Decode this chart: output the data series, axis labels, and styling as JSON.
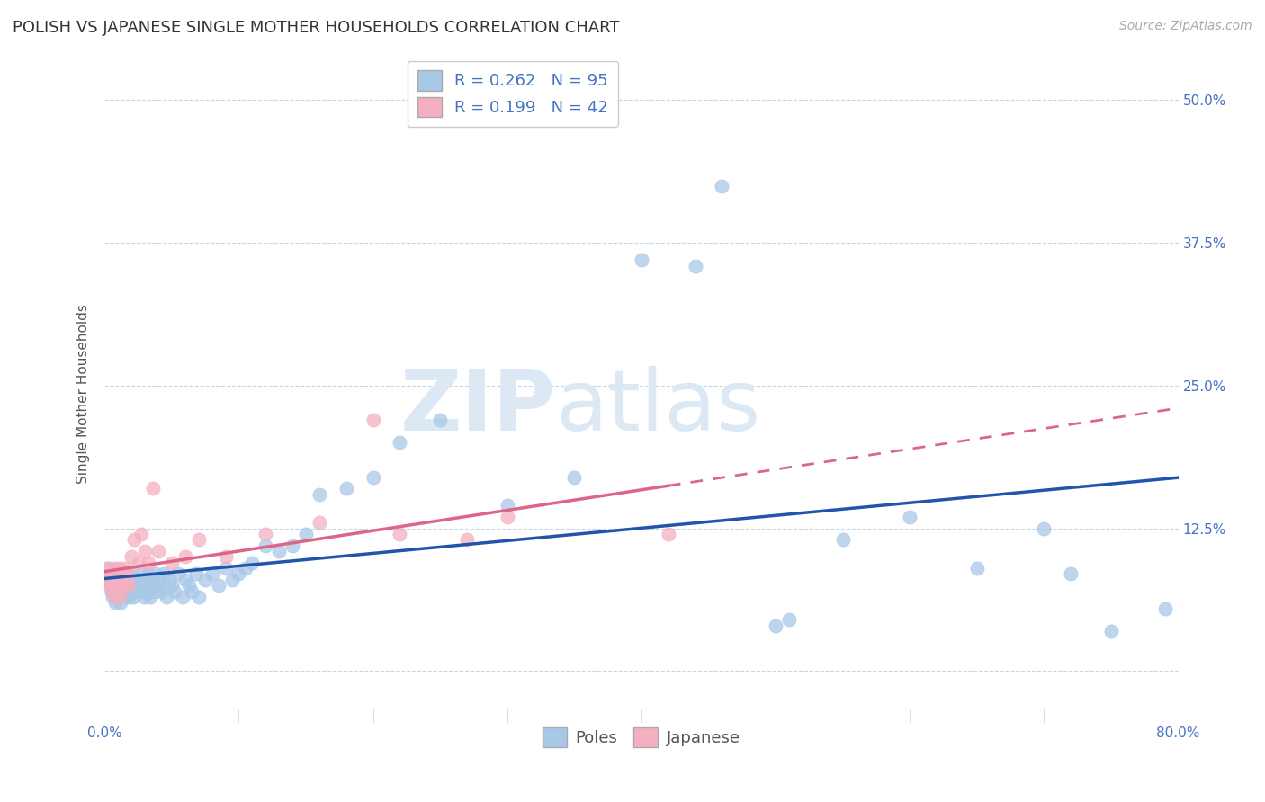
{
  "title": "POLISH VS JAPANESE SINGLE MOTHER HOUSEHOLDS CORRELATION CHART",
  "source": "Source: ZipAtlas.com",
  "ylabel": "Single Mother Households",
  "y_ticks": [
    0.0,
    0.125,
    0.25,
    0.375,
    0.5
  ],
  "y_tick_labels": [
    "",
    "12.5%",
    "25.0%",
    "37.5%",
    "50.0%"
  ],
  "xlim": [
    0.0,
    0.8
  ],
  "ylim": [
    -0.045,
    0.53
  ],
  "legend_labels": [
    "Poles",
    "Japanese"
  ],
  "poles_color": "#a8c8e8",
  "japanese_color": "#f4b0c0",
  "poles_line_color": "#2255aa",
  "japanese_line_color": "#dd6688",
  "poles_R": 0.262,
  "poles_N": 95,
  "japanese_R": 0.199,
  "japanese_N": 42,
  "watermark_zip": "ZIP",
  "watermark_atlas": "atlas",
  "background_color": "#ffffff",
  "grid_color": "#c8d4e8",
  "poles_x": [
    0.002,
    0.003,
    0.004,
    0.005,
    0.006,
    0.006,
    0.007,
    0.007,
    0.008,
    0.008,
    0.009,
    0.01,
    0.01,
    0.011,
    0.011,
    0.012,
    0.012,
    0.013,
    0.013,
    0.014,
    0.014,
    0.015,
    0.015,
    0.016,
    0.017,
    0.017,
    0.018,
    0.018,
    0.019,
    0.02,
    0.02,
    0.021,
    0.022,
    0.022,
    0.023,
    0.025,
    0.026,
    0.027,
    0.028,
    0.029,
    0.03,
    0.031,
    0.032,
    0.033,
    0.034,
    0.035,
    0.036,
    0.037,
    0.038,
    0.04,
    0.041,
    0.042,
    0.044,
    0.046,
    0.048,
    0.05,
    0.052,
    0.055,
    0.058,
    0.06,
    0.063,
    0.065,
    0.068,
    0.07,
    0.075,
    0.08,
    0.085,
    0.09,
    0.095,
    0.1,
    0.105,
    0.11,
    0.12,
    0.13,
    0.14,
    0.15,
    0.16,
    0.18,
    0.2,
    0.22,
    0.25,
    0.3,
    0.35,
    0.4,
    0.44,
    0.46,
    0.5,
    0.51,
    0.55,
    0.6,
    0.65,
    0.7,
    0.72,
    0.75,
    0.79
  ],
  "poles_y": [
    0.08,
    0.09,
    0.075,
    0.07,
    0.065,
    0.085,
    0.07,
    0.08,
    0.06,
    0.075,
    0.065,
    0.08,
    0.07,
    0.075,
    0.085,
    0.06,
    0.075,
    0.065,
    0.08,
    0.07,
    0.085,
    0.075,
    0.065,
    0.08,
    0.07,
    0.085,
    0.075,
    0.065,
    0.08,
    0.07,
    0.085,
    0.065,
    0.07,
    0.08,
    0.075,
    0.075,
    0.08,
    0.07,
    0.085,
    0.065,
    0.08,
    0.075,
    0.07,
    0.085,
    0.065,
    0.08,
    0.075,
    0.07,
    0.085,
    0.08,
    0.075,
    0.07,
    0.085,
    0.065,
    0.08,
    0.075,
    0.07,
    0.085,
    0.065,
    0.08,
    0.075,
    0.07,
    0.085,
    0.065,
    0.08,
    0.085,
    0.075,
    0.09,
    0.08,
    0.085,
    0.09,
    0.095,
    0.11,
    0.105,
    0.11,
    0.12,
    0.155,
    0.16,
    0.17,
    0.2,
    0.22,
    0.145,
    0.17,
    0.36,
    0.355,
    0.425,
    0.04,
    0.045,
    0.115,
    0.135,
    0.09,
    0.125,
    0.085,
    0.035,
    0.055
  ],
  "japanese_x": [
    0.002,
    0.003,
    0.004,
    0.005,
    0.005,
    0.006,
    0.007,
    0.007,
    0.008,
    0.008,
    0.009,
    0.009,
    0.01,
    0.01,
    0.011,
    0.011,
    0.012,
    0.013,
    0.014,
    0.015,
    0.016,
    0.017,
    0.018,
    0.02,
    0.022,
    0.025,
    0.027,
    0.03,
    0.033,
    0.036,
    0.04,
    0.05,
    0.06,
    0.07,
    0.09,
    0.12,
    0.16,
    0.2,
    0.22,
    0.27,
    0.3,
    0.42
  ],
  "japanese_y": [
    0.09,
    0.08,
    0.075,
    0.085,
    0.07,
    0.08,
    0.085,
    0.075,
    0.065,
    0.09,
    0.08,
    0.075,
    0.085,
    0.07,
    0.065,
    0.09,
    0.08,
    0.085,
    0.075,
    0.09,
    0.08,
    0.085,
    0.075,
    0.1,
    0.115,
    0.095,
    0.12,
    0.105,
    0.095,
    0.16,
    0.105,
    0.095,
    0.1,
    0.115,
    0.1,
    0.12,
    0.13,
    0.22,
    0.12,
    0.115,
    0.135,
    0.12
  ],
  "title_fontsize": 13,
  "source_fontsize": 10,
  "ylabel_fontsize": 11,
  "tick_fontsize": 11,
  "legend_fontsize": 13
}
